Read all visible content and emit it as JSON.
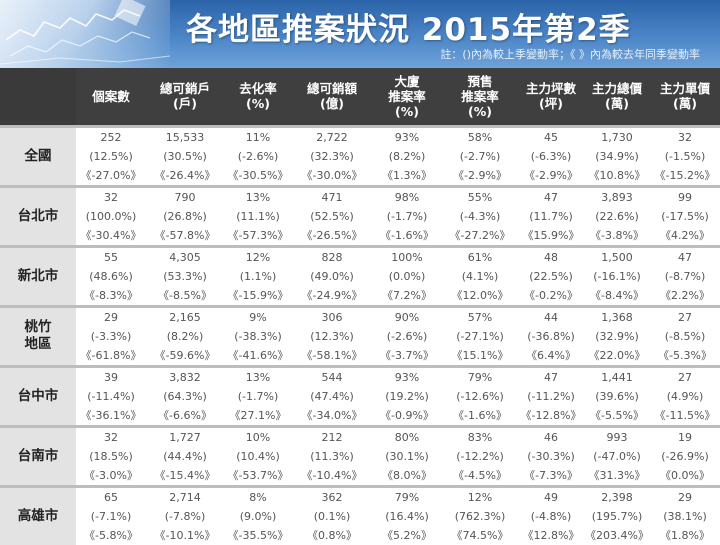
{
  "header": {
    "title": "各地區推案狀況 2015年第2季",
    "note": "註：()內為較上季變動率；《 》內為較去年同季變動率"
  },
  "colors": {
    "increase": "#e02020",
    "decrease": "#2a8a1f",
    "header_bg": "#3f3f3f",
    "row_header_bg": "#e3e3e3"
  },
  "columns": [
    {
      "line1": "個案數",
      "line2": "",
      "line3": ""
    },
    {
      "line1": "總可銷戶",
      "line2": "(戶)",
      "line3": ""
    },
    {
      "line1": "去化率",
      "line2": "(%)",
      "line3": ""
    },
    {
      "line1": "總可銷額",
      "line2": "(億)",
      "line3": ""
    },
    {
      "line1": "大廈",
      "line2": "推案率",
      "line3": "(%)"
    },
    {
      "line1": "預售",
      "line2": "推案率",
      "line3": "(%)"
    },
    {
      "line1": "主力坪數",
      "line2": "(坪)",
      "line3": ""
    },
    {
      "line1": "主力總價",
      "line2": "(萬)",
      "line3": ""
    },
    {
      "line1": "主力單價",
      "line2": "(萬)",
      "line3": ""
    }
  ],
  "regions": [
    {
      "name_line1": "全國",
      "name_line2": "",
      "values": [
        "252",
        "15,533",
        "11%",
        "2,722",
        "93%",
        "58%",
        "45",
        "1,730",
        "32"
      ],
      "qoq": [
        "(12.5%)",
        "(30.5%)",
        "(-2.6%)",
        "(32.3%)",
        "(8.2%)",
        "(-2.7%)",
        "(-6.3%)",
        "(34.9%)",
        "(-1.5%)"
      ],
      "yoy": [
        "《-27.0%》",
        "《-26.4%》",
        "《-30.5%》",
        "《-30.0%》",
        "《1.3%》",
        "《-2.9%》",
        "《-2.9%》",
        "《10.8%》",
        "《-15.2%》"
      ]
    },
    {
      "name_line1": "台北市",
      "name_line2": "",
      "values": [
        "32",
        "790",
        "13%",
        "471",
        "98%",
        "55%",
        "47",
        "3,893",
        "99"
      ],
      "qoq": [
        "(100.0%)",
        "(26.8%)",
        "(11.1%)",
        "(52.5%)",
        "(-1.7%)",
        "(-4.3%)",
        "(11.7%)",
        "(22.6%)",
        "(-17.5%)"
      ],
      "yoy": [
        "《-30.4%》",
        "《-57.8%》",
        "《-57.3%》",
        "《-26.5%》",
        "《-1.6%》",
        "《-27.2%》",
        "《15.9%》",
        "《-3.8%》",
        "《4.2%》"
      ]
    },
    {
      "name_line1": "新北市",
      "name_line2": "",
      "values": [
        "55",
        "4,305",
        "12%",
        "828",
        "100%",
        "61%",
        "48",
        "1,500",
        "47"
      ],
      "qoq": [
        "(48.6%)",
        "(53.3%)",
        "(1.1%)",
        "(49.0%)",
        "(0.0%)",
        "(4.1%)",
        "(22.5%)",
        "(-16.1%)",
        "(-8.7%)"
      ],
      "yoy": [
        "《-8.3%》",
        "《-8.5%》",
        "《-15.9%》",
        "《-24.9%》",
        "《7.2%》",
        "《12.0%》",
        "《-0.2%》",
        "《-8.4%》",
        "《2.2%》"
      ]
    },
    {
      "name_line1": "桃竹",
      "name_line2": "地區",
      "values": [
        "29",
        "2,165",
        "9%",
        "306",
        "90%",
        "57%",
        "44",
        "1,368",
        "27"
      ],
      "qoq": [
        "(-3.3%)",
        "(8.2%)",
        "(-38.3%)",
        "(12.3%)",
        "(-2.6%)",
        "(-27.1%)",
        "(-36.8%)",
        "(32.9%)",
        "(-8.5%)"
      ],
      "yoy": [
        "《-61.8%》",
        "《-59.6%》",
        "《-41.6%》",
        "《-58.1%》",
        "《-3.7%》",
        "《15.1%》",
        "《6.4%》",
        "《22.0%》",
        "《-5.3%》"
      ]
    },
    {
      "name_line1": "台中市",
      "name_line2": "",
      "values": [
        "39",
        "3,832",
        "13%",
        "544",
        "93%",
        "79%",
        "47",
        "1,441",
        "27"
      ],
      "qoq": [
        "(-11.4%)",
        "(64.3%)",
        "(-1.7%)",
        "(47.4%)",
        "(19.2%)",
        "(-12.6%)",
        "(-11.2%)",
        "(39.6%)",
        "(4.9%)"
      ],
      "yoy": [
        "《-36.1%》",
        "《-6.6%》",
        "《27.1%》",
        "《-34.0%》",
        "《-0.9%》",
        "《-1.6%》",
        "《-12.8%》",
        "《-5.5%》",
        "《-11.5%》"
      ]
    },
    {
      "name_line1": "台南市",
      "name_line2": "",
      "values": [
        "32",
        "1,727",
        "10%",
        "212",
        "80%",
        "83%",
        "46",
        "993",
        "19"
      ],
      "qoq": [
        "(18.5%)",
        "(44.4%)",
        "(10.4%)",
        "(11.3%)",
        "(30.1%)",
        "(-12.2%)",
        "(-30.3%)",
        "(-47.0%)",
        "(-26.9%)"
      ],
      "yoy": [
        "《-3.0%》",
        "《-15.4%》",
        "《-53.7%》",
        "《-10.4%》",
        "《8.0%》",
        "《-4.5%》",
        "《-7.3%》",
        "《31.3%》",
        "《0.0%》"
      ]
    },
    {
      "name_line1": "高雄市",
      "name_line2": "",
      "values": [
        "65",
        "2,714",
        "8%",
        "362",
        "79%",
        "12%",
        "49",
        "2,398",
        "29"
      ],
      "qoq": [
        "(-7.1%)",
        "(-7.8%)",
        "(9.0%)",
        "(0.1%)",
        "(16.4%)",
        "(762.3%)",
        "(-4.8%)",
        "(195.7%)",
        "(38.1%)"
      ],
      "yoy": [
        "《-5.8%》",
        "《-10.1%》",
        "《-35.5%》",
        "《0.8%》",
        "《5.2%》",
        "《74.5%》",
        "《12.8%》",
        "《203.4%》",
        "《1.8%》"
      ]
    }
  ]
}
